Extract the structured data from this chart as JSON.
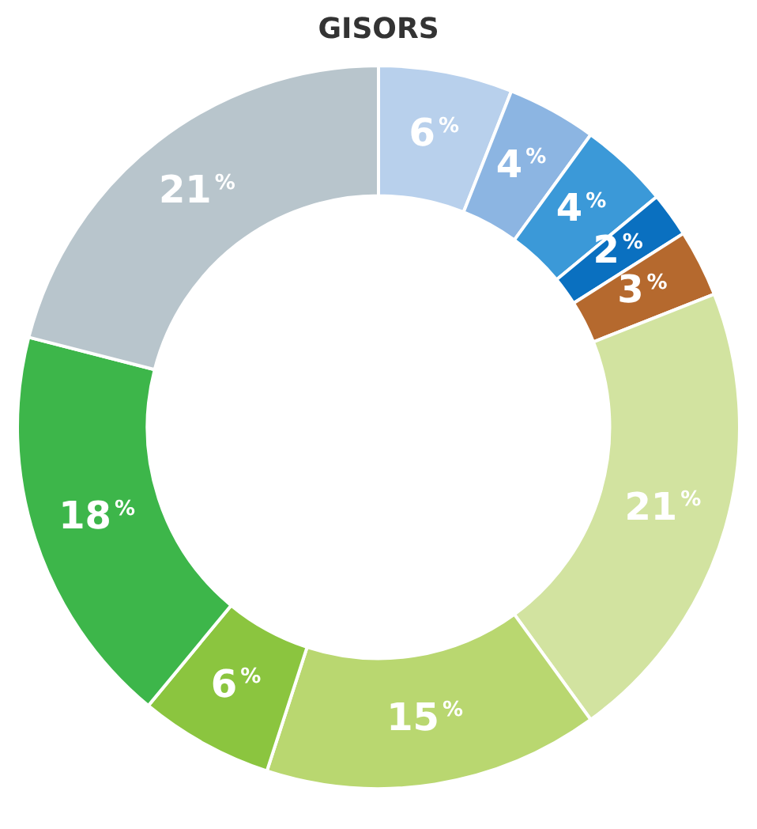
{
  "chart_data": {
    "type": "donut",
    "title": "GISORS",
    "categories": [
      null,
      null,
      null,
      null,
      null,
      null,
      null,
      null,
      null,
      null
    ],
    "values": [
      6,
      4,
      4,
      2,
      3,
      21,
      15,
      6,
      18,
      21
    ],
    "colors": [
      "#b8d0ec",
      "#8cb5e2",
      "#3b99d8",
      "#0a70c0",
      "#b5692e",
      "#d2e3a0",
      "#b9d770",
      "#8bc53f",
      "#3db64a",
      "#b8c5cc"
    ],
    "value_labels": [
      "6%",
      "4%",
      "4%",
      "2%",
      "3%",
      "21%",
      "15%",
      "6%",
      "18%",
      "21%"
    ],
    "legend": false
  }
}
